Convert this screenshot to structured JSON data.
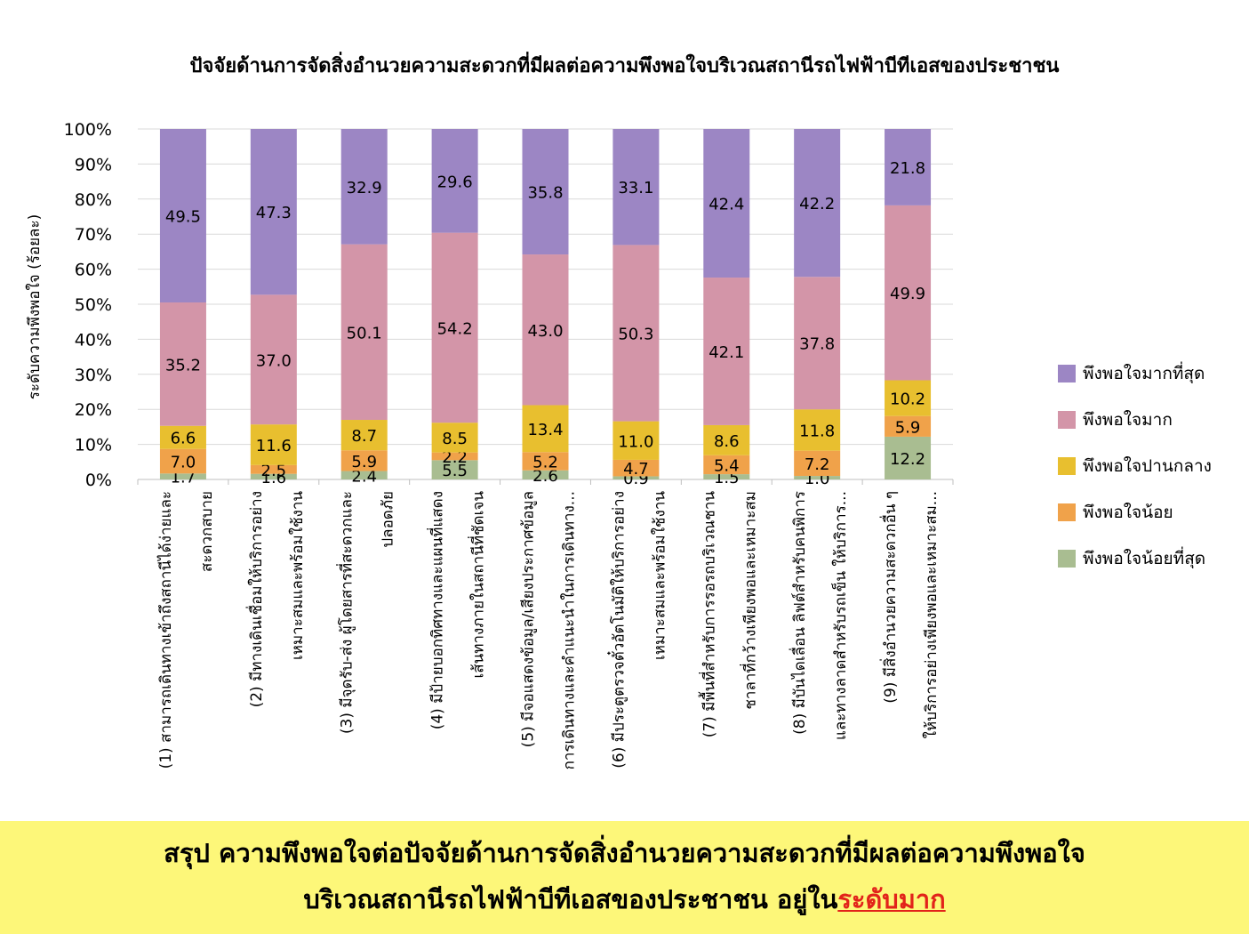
{
  "colors": {
    "most_satisfied": "#9c86c4",
    "very_satisfied": "#d395a8",
    "moderate": "#e8bf2f",
    "less": "#f0a24a",
    "least": "#a9bd91",
    "summary_bg": "#fdf779",
    "highlight": "#e2231a"
  },
  "chart_data": {
    "type": "bar",
    "stacked": true,
    "title": "ปัจจัยด้านการจัดสิ่งอำนวยความสะดวกที่มีผลต่อความพึงพอใจบริเวณสถานีรถไฟฟ้าบีทีเอสของประชาชน",
    "ylabel": "ระดับความพึงพอใจ (ร้อยละ)",
    "xlabel": "",
    "ylim": [
      0,
      100
    ],
    "yticks": [
      "0%",
      "10%",
      "20%",
      "30%",
      "40%",
      "50%",
      "60%",
      "70%",
      "80%",
      "90%",
      "100%"
    ],
    "grid": true,
    "legend_position": "right",
    "categories": [
      [
        "(1) สามารถเดินทางเข้าถึงสถานีได้ง่ายและ",
        "สะดวกสบาย"
      ],
      [
        "(2) มีทางเดินเชื่อมให้บริการอย่าง",
        "เหมาะสมและพร้อมใช้งาน"
      ],
      [
        "(3) มีจุดรับ-ส่ง ผู้โดยสารที่สะดวกและ",
        "ปลอดภัย"
      ],
      [
        "(4) มีป้ายบอกทิศทางและแผนที่แสดง",
        "เส้นทางภายในสถานีที่ชัดเจน"
      ],
      [
        "(5) มีจอแสดงข้อมูล/เสียงประกาศข้อมูล",
        "การเดินทางและคำแนะนำในการเดินทาง..."
      ],
      [
        "(6) มีประตูตรวจตั๋วอัตโนมัติให้บริการอย่าง",
        "เหมาะสมและพร้อมใช้งาน"
      ],
      [
        "(7) มีพื้นที่สำหรับการรอรถบริเวณชาน",
        "ชาลาที่กว้างเพียงพอและเหมาะสม"
      ],
      [
        "(8) มีบันไดเลื่อน ลิฟต์สำหรับคนพิการ",
        "และทางลาดสำหรับรถเข็น ให้บริการ..."
      ],
      [
        "(9) มีสิ่งอำนวยความสะดวกอื่น ๆ",
        "ให้บริการอย่างเพียงพอและเหมาะสม..."
      ]
    ],
    "series": [
      {
        "name": "พึงพอใจน้อยที่สุด",
        "color_key": "least",
        "values": [
          1.7,
          1.6,
          2.4,
          5.5,
          2.6,
          0.9,
          1.5,
          1.0,
          12.2
        ]
      },
      {
        "name": "พึงพอใจน้อย",
        "color_key": "less",
        "values": [
          7.0,
          2.5,
          5.9,
          2.2,
          5.2,
          4.7,
          5.4,
          7.2,
          5.9
        ]
      },
      {
        "name": "พึงพอใจปานกลาง",
        "color_key": "moderate",
        "values": [
          6.6,
          11.6,
          8.7,
          8.5,
          13.4,
          11.0,
          8.6,
          11.8,
          10.2
        ]
      },
      {
        "name": "พึงพอใจมาก",
        "color_key": "very_satisfied",
        "values": [
          35.2,
          37.0,
          50.1,
          54.2,
          43.0,
          50.3,
          42.1,
          37.8,
          49.9
        ]
      },
      {
        "name": "พึงพอใจมากที่สุด",
        "color_key": "most_satisfied",
        "values": [
          49.5,
          47.3,
          32.9,
          29.6,
          35.8,
          33.1,
          42.4,
          42.2,
          21.8
        ]
      }
    ],
    "data_labels": [
      [
        "1.7",
        "1.6",
        "2.4",
        "5.5",
        "2.6",
        "0.9",
        "1.5",
        "1.0",
        "12.2"
      ],
      [
        "7.0",
        "2.5",
        "5.9",
        "2.2",
        "5.2",
        "4.7",
        "5.4",
        "7.2",
        "5.9"
      ],
      [
        "6.6",
        "11.6",
        "8.7",
        "8.5",
        "13.4",
        "11.0",
        "8.6",
        "11.8",
        "10.2"
      ],
      [
        "35.2",
        "37.0",
        "50.1",
        "54.2",
        "43.0",
        "50.3",
        "42.1",
        "37.8",
        "49.9"
      ],
      [
        "49.5",
        "47.3",
        "32.9",
        "29.6",
        "35.8",
        "33.1",
        "42.4",
        "42.2",
        "21.8"
      ]
    ],
    "legend_order": [
      "พึงพอใจมากที่สุด",
      "พึงพอใจมาก",
      "พึงพอใจปานกลาง",
      "พึงพอใจน้อย",
      "พึงพอใจน้อยที่สุด"
    ]
  },
  "summary": {
    "line1": "สรุป ความพึงพอใจต่อปัจจัยด้านการจัดสิ่งอำนวยความสะดวกที่มีผลต่อความพึงพอใจ",
    "line2_prefix": "บริเวณสถานีรถไฟฟ้าบีทีเอสของประชาชน อยู่ใน",
    "line2_highlight": "ระดับมาก"
  }
}
